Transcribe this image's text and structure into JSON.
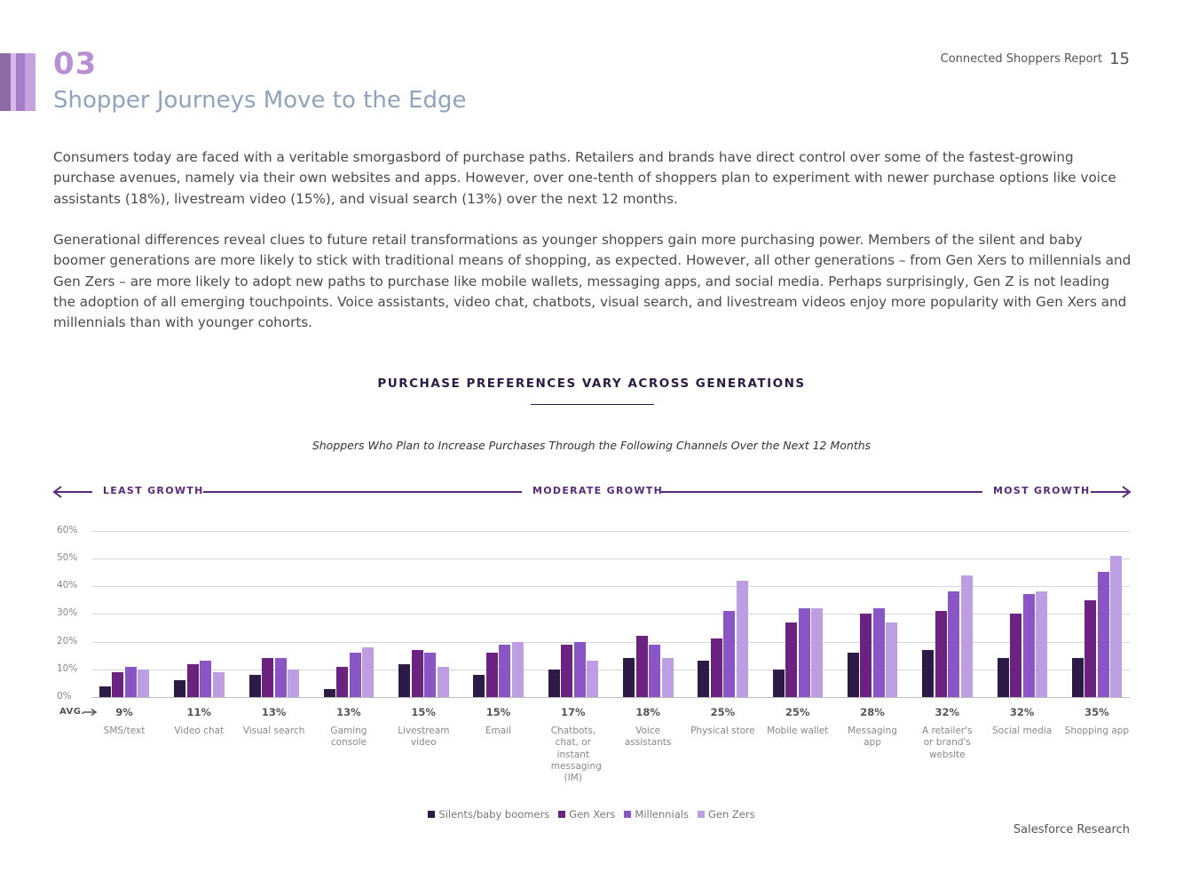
{
  "header": {
    "section_number": "03",
    "section_title": "Shopper Journeys Move to the Edge",
    "report_name": "Connected Shoppers Report",
    "page_number": "15",
    "accent_colors": [
      "#8e6aa6",
      "#d9b9ea",
      "#a57cc6",
      "#c7a3de"
    ]
  },
  "body": {
    "paragraph_1": "Consumers today are faced with a veritable smorgasbord of purchase paths. Retailers and brands have direct control over some of the fastest-growing purchase avenues, namely via their own websites and apps. However, over one-tenth of shoppers plan to experiment with newer purchase options like voice assistants (18%), livestream video (15%), and visual search (13%) over the next 12 months.",
    "paragraph_2": "Generational differences reveal clues to future retail transformations as younger shoppers gain more purchasing power. Members of the silent and baby boomer generations are more likely to stick with traditional means of shopping, as expected. However, all other generations – from Gen Xers to millennials and Gen Zers – are more likely to adopt new paths to purchase like mobile wallets, messaging apps, and social media. Perhaps surprisingly, Gen Z is not leading the adoption of all emerging touchpoints. Voice assistants, video chat, chatbots, visual search, and livestream videos enjoy more popularity with Gen Xers and millennials than with younger cohorts."
  },
  "chart_data": {
    "type": "bar",
    "title": "PURCHASE PREFERENCES VARY ACROSS GENERATIONS",
    "subtitle": "Shoppers Who Plan to Increase Purchases Through the Following Channels Over the Next 12 Months",
    "growth_labels": {
      "left": "LEAST GROWTH",
      "middle": "MODERATE GROWTH",
      "right": "MOST GROWTH"
    },
    "ylim": [
      0,
      60
    ],
    "yticks": [
      "0%",
      "10%",
      "20%",
      "30%",
      "40%",
      "50%",
      "60%"
    ],
    "avg_label": "AVG.",
    "categories": [
      "SMS/text",
      "Video chat",
      "Visual search",
      "Gaming console",
      "Livestream video",
      "Email",
      "Chatbots, chat, or instant messaging (IM)",
      "Voice assistants",
      "Physical store",
      "Mobile wallet",
      "Messaging app",
      "A retailer's or brand's website",
      "Social media",
      "Shopping app"
    ],
    "averages": [
      "9%",
      "11%",
      "13%",
      "13%",
      "15%",
      "15%",
      "17%",
      "18%",
      "25%",
      "25%",
      "28%",
      "32%",
      "32%",
      "35%"
    ],
    "series": [
      {
        "name": "Silents/baby boomers",
        "color": "#2e1a47",
        "values": [
          4,
          6,
          8,
          3,
          12,
          8,
          10,
          14,
          13,
          10,
          16,
          17,
          14,
          14
        ]
      },
      {
        "name": "Gen Xers",
        "color": "#6b2280",
        "values": [
          9,
          12,
          14,
          11,
          17,
          16,
          19,
          22,
          21,
          27,
          30,
          31,
          30,
          35
        ]
      },
      {
        "name": "Millennials",
        "color": "#8a55c4",
        "values": [
          11,
          13,
          14,
          16,
          16,
          19,
          20,
          19,
          31,
          32,
          32,
          38,
          37,
          45
        ]
      },
      {
        "name": "Gen Zers",
        "color": "#bd9ee3",
        "values": [
          10,
          9,
          10,
          18,
          11,
          20,
          13,
          14,
          42,
          32,
          27,
          44,
          38,
          51
        ]
      }
    ]
  },
  "footer": {
    "source": "Salesforce Research"
  }
}
